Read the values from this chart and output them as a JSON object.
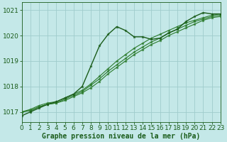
{
  "title": "Graphe pression niveau de la mer (hPa)",
  "background_color": "#c4e8e8",
  "grid_color": "#a0cccc",
  "line_color_dark": "#1a5c1a",
  "line_color_mid": "#2a7a2a",
  "xlim": [
    0,
    23
  ],
  "ylim": [
    1016.6,
    1021.3
  ],
  "yticks": [
    1017,
    1018,
    1019,
    1020,
    1021
  ],
  "xticks": [
    0,
    1,
    2,
    3,
    4,
    5,
    6,
    7,
    8,
    9,
    10,
    11,
    12,
    13,
    14,
    15,
    16,
    17,
    18,
    19,
    20,
    21,
    22,
    23
  ],
  "series_wavy": [
    1016.85,
    1017.0,
    1017.15,
    1017.3,
    1017.4,
    1017.55,
    1017.7,
    1018.0,
    1018.8,
    1019.6,
    1020.05,
    1020.35,
    1020.2,
    1019.95,
    1019.95,
    1019.85,
    1019.9,
    1020.1,
    1020.25,
    1020.55,
    1020.75,
    1020.9,
    1020.85,
    1020.85
  ],
  "series_straight1": [
    1017.0,
    1017.05,
    1017.2,
    1017.3,
    1017.35,
    1017.45,
    1017.6,
    1017.75,
    1017.95,
    1018.2,
    1018.5,
    1018.75,
    1019.0,
    1019.25,
    1019.45,
    1019.65,
    1019.8,
    1020.0,
    1020.15,
    1020.3,
    1020.45,
    1020.6,
    1020.7,
    1020.75
  ],
  "series_straight2": [
    1017.0,
    1017.05,
    1017.2,
    1017.3,
    1017.35,
    1017.5,
    1017.65,
    1017.8,
    1018.05,
    1018.3,
    1018.6,
    1018.85,
    1019.1,
    1019.35,
    1019.55,
    1019.75,
    1019.9,
    1020.1,
    1020.25,
    1020.4,
    1020.55,
    1020.65,
    1020.75,
    1020.8
  ],
  "series_straight3": [
    1017.0,
    1017.1,
    1017.25,
    1017.35,
    1017.4,
    1017.55,
    1017.7,
    1017.85,
    1018.1,
    1018.4,
    1018.7,
    1019.0,
    1019.25,
    1019.5,
    1019.7,
    1019.9,
    1020.05,
    1020.2,
    1020.35,
    1020.5,
    1020.6,
    1020.7,
    1020.8,
    1020.85
  ],
  "xlabel_fontsize": 7,
  "tick_fontsize": 6.5
}
